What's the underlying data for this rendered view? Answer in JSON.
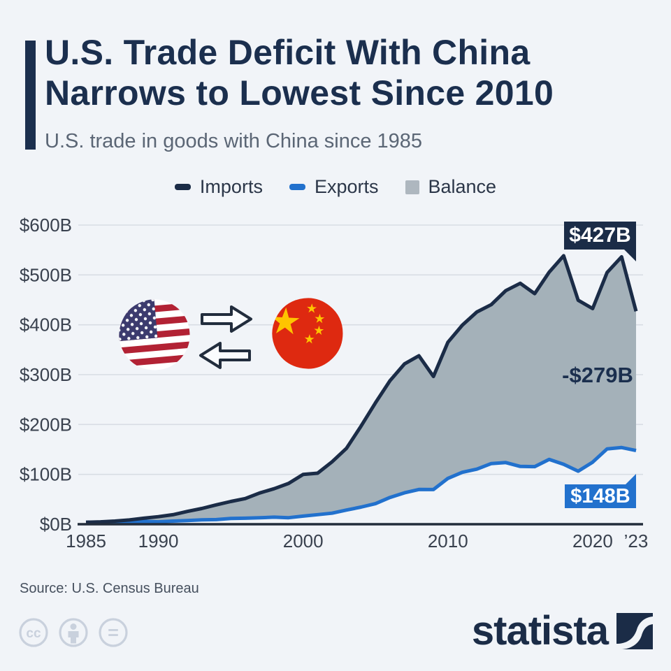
{
  "page": {
    "background": "#f1f4f8"
  },
  "header": {
    "title_line1": "U.S. Trade Deficit With China",
    "title_line2": "Narrows to Lowest Since 2010",
    "subtitle": "U.S. trade in goods with China since 1985",
    "accent_color": "#1b2f4e"
  },
  "legend": {
    "items": [
      {
        "label": "Imports",
        "color": "#1b2c47",
        "shape": "dash"
      },
      {
        "label": "Exports",
        "color": "#2271cd",
        "shape": "dash"
      },
      {
        "label": "Balance",
        "color": "#aeb7bf",
        "shape": "square"
      }
    ]
  },
  "chart_data": {
    "type": "area",
    "title": "U.S. Trade Deficit With China Narrows to Lowest Since 2010",
    "subtitle": "U.S. trade in goods with China since 1985",
    "unit": "billion USD",
    "x": [
      1985,
      1986,
      1987,
      1988,
      1989,
      1990,
      1991,
      1992,
      1993,
      1994,
      1995,
      1996,
      1997,
      1998,
      1999,
      2000,
      2001,
      2002,
      2003,
      2004,
      2005,
      2006,
      2007,
      2008,
      2009,
      2010,
      2011,
      2012,
      2013,
      2014,
      2015,
      2016,
      2017,
      2018,
      2019,
      2020,
      2021,
      2022,
      2023
    ],
    "series": [
      {
        "name": "Imports",
        "color": "#1b2c47",
        "values": [
          3.9,
          4.8,
          6.3,
          8.5,
          12.0,
          15.2,
          19.0,
          25.7,
          31.5,
          38.8,
          45.6,
          51.5,
          62.6,
          71.2,
          81.8,
          100.0,
          102.3,
          125.2,
          152.4,
          196.7,
          243.5,
          287.8,
          321.4,
          337.8,
          296.4,
          364.9,
          399.4,
          425.6,
          440.4,
          468.5,
          483.2,
          462.5,
          505.5,
          538.5,
          449.1,
          432.5,
          504.9,
          536.3,
          427.2
        ]
      },
      {
        "name": "Exports",
        "color": "#2271cd",
        "values": [
          3.9,
          3.1,
          3.5,
          5.0,
          5.8,
          4.8,
          6.3,
          7.4,
          8.8,
          9.3,
          11.7,
          12.0,
          12.9,
          14.2,
          13.1,
          16.2,
          19.2,
          22.1,
          28.4,
          34.4,
          41.2,
          53.7,
          62.9,
          69.7,
          69.5,
          91.9,
          104.1,
          110.5,
          121.7,
          123.7,
          115.9,
          115.5,
          129.9,
          120.3,
          106.4,
          124.5,
          151.1,
          153.8,
          147.8
        ]
      },
      {
        "name": "Balance",
        "color": "#a4b1b9",
        "render": "shaded area between Imports and Exports",
        "values": [
          0.0,
          -1.7,
          -2.8,
          -3.5,
          -6.2,
          -10.4,
          -12.7,
          -18.3,
          -22.8,
          -29.5,
          -33.8,
          -39.5,
          -49.7,
          -56.9,
          -68.7,
          -83.8,
          -83.1,
          -103.1,
          -124.0,
          -162.3,
          -202.3,
          -234.1,
          -258.5,
          -268.0,
          -226.9,
          -273.0,
          -295.2,
          -315.1,
          -318.7,
          -344.8,
          -367.3,
          -347.0,
          -375.6,
          -418.2,
          -342.6,
          -308.1,
          -353.8,
          -382.4,
          -279.4
        ]
      }
    ],
    "ylim": [
      0,
      600
    ],
    "grid": true,
    "legend_position": "top",
    "y_ticks": [
      {
        "label": "$0B",
        "value": 0
      },
      {
        "label": "$100B",
        "value": 100
      },
      {
        "label": "$200B",
        "value": 200
      },
      {
        "label": "$300B",
        "value": 300
      },
      {
        "label": "$400B",
        "value": 400
      },
      {
        "label": "$500B",
        "value": 500
      },
      {
        "label": "$600B",
        "value": 600
      }
    ],
    "x_ticks": [
      {
        "label": "1985",
        "year": 1985
      },
      {
        "label": "1990",
        "year": 1990
      },
      {
        "label": "2000",
        "year": 2000
      },
      {
        "label": "2010",
        "year": 2010
      },
      {
        "label": "2020",
        "year": 2020
      },
      {
        "label": "’23",
        "year": 2023
      }
    ],
    "annotations": {
      "imports_end": {
        "text": "$427B",
        "series": "Imports",
        "year": 2023,
        "style": "badge-navy"
      },
      "balance_end": {
        "text": "-$279B",
        "series": "Balance",
        "year": 2023,
        "style": "plain-navy-text"
      },
      "exports_end": {
        "text": "$148B",
        "series": "Exports",
        "year": 2023,
        "style": "badge-blue"
      }
    },
    "decoration": {
      "flags": [
        "united-states",
        "china"
      ],
      "arrows": [
        "right",
        "left"
      ]
    }
  },
  "footer": {
    "source": "Source: U.S. Census Bureau",
    "brand": "statista",
    "license_icons": [
      "cc",
      "by",
      "nd"
    ]
  }
}
